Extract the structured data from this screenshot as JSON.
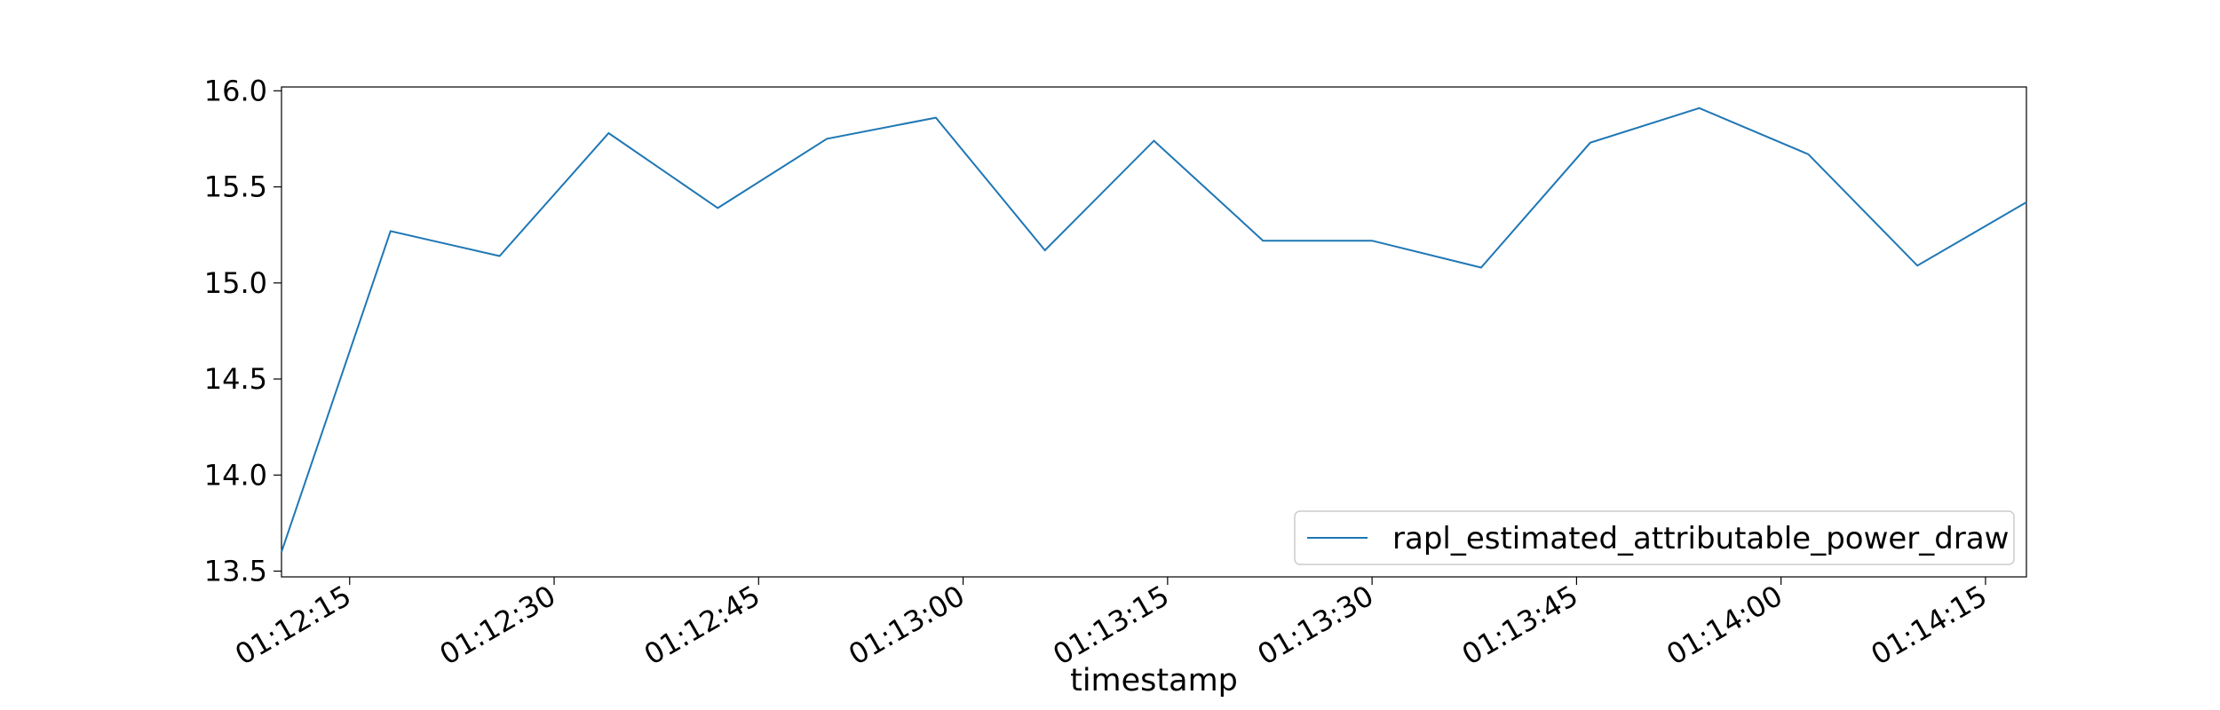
{
  "chart_data": {
    "type": "line",
    "title": "",
    "xlabel": "timestamp",
    "ylabel": "",
    "x": [
      "01:12:10",
      "01:12:18",
      "01:12:26",
      "01:12:34",
      "01:12:42",
      "01:12:50",
      "01:12:58",
      "01:13:06",
      "01:13:14",
      "01:13:22",
      "01:13:30",
      "01:13:38",
      "01:13:46",
      "01:13:54",
      "01:14:02",
      "01:14:10",
      "01:14:18"
    ],
    "series": [
      {
        "name": "rapl_estimated_attributable_power_draw",
        "color": "#1f77b4",
        "values": [
          13.6,
          15.27,
          15.14,
          15.78,
          15.39,
          15.75,
          15.86,
          15.17,
          15.74,
          15.22,
          15.22,
          15.08,
          15.73,
          15.91,
          15.67,
          15.09,
          15.42
        ]
      }
    ],
    "xlim": [
      "01:12:10",
      "01:14:18"
    ],
    "ylim": [
      13.47,
      16.02
    ],
    "xticks": [
      "01:12:15",
      "01:12:30",
      "01:12:45",
      "01:13:00",
      "01:13:15",
      "01:13:30",
      "01:13:45",
      "01:14:00",
      "01:14:15"
    ],
    "yticks": [
      "13.5",
      "14.0",
      "14.5",
      "15.0",
      "15.5",
      "16.0"
    ],
    "grid": false,
    "legend": "lower-right"
  }
}
